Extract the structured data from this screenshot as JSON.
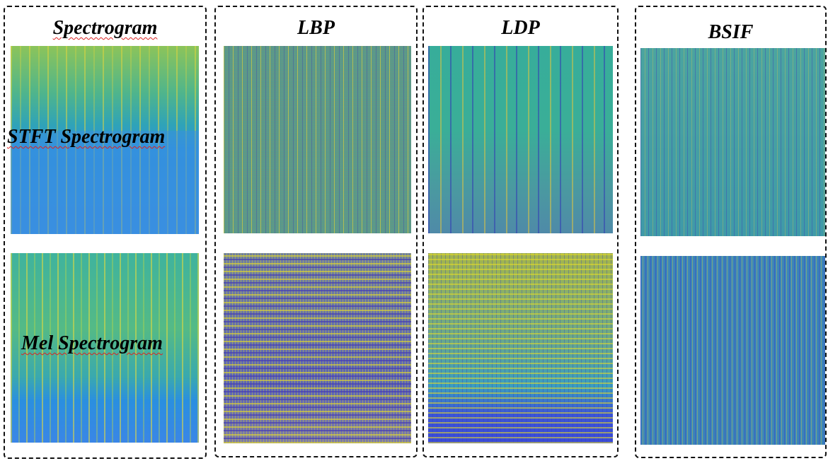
{
  "panels": [
    {
      "title": "Spectrogram"
    },
    {
      "title": "LBP"
    },
    {
      "title": "LDP"
    },
    {
      "title": "BSIF"
    }
  ],
  "row_labels": [
    "STFT Spectrogram",
    "Mel Spectrogram"
  ]
}
